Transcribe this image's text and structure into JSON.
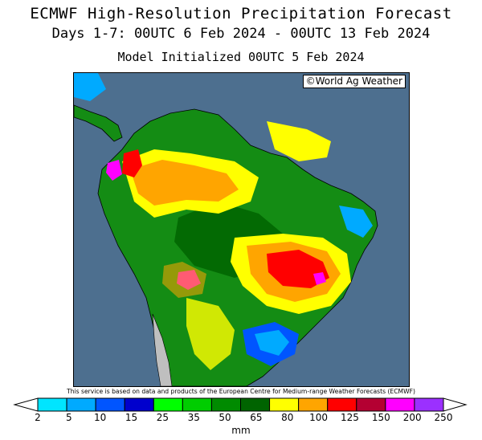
{
  "header": {
    "title": "ECMWF High-Resolution Precipitation Forecast",
    "period": "Days 1-7: 00UTC 6 Feb 2024 - 00UTC 13 Feb 2024",
    "init": "Model Initialized 00UTC 5 Feb 2024"
  },
  "map": {
    "credit": "©World Ag Weather",
    "ocean_color": "#4d6f8f",
    "land_base_color": "#148c14",
    "land_dry_color": "#bfbfbf"
  },
  "disclaimer": "This service is based on data and products of the European Centre for Medium-range Weather Forecasts (ECMWF)",
  "legend": {
    "units": "mm",
    "ticks": [
      "2",
      "5",
      "10",
      "15",
      "25",
      "35",
      "50",
      "65",
      "80",
      "100",
      "125",
      "150",
      "200",
      "250"
    ],
    "colors": [
      "#00e5ff",
      "#00aaff",
      "#0055ff",
      "#0000cd",
      "#00ff00",
      "#00cd00",
      "#008b00",
      "#006400",
      "#ffff00",
      "#ffa500",
      "#ff0000",
      "#b40032",
      "#ff00ff",
      "#9b30ff"
    ]
  }
}
